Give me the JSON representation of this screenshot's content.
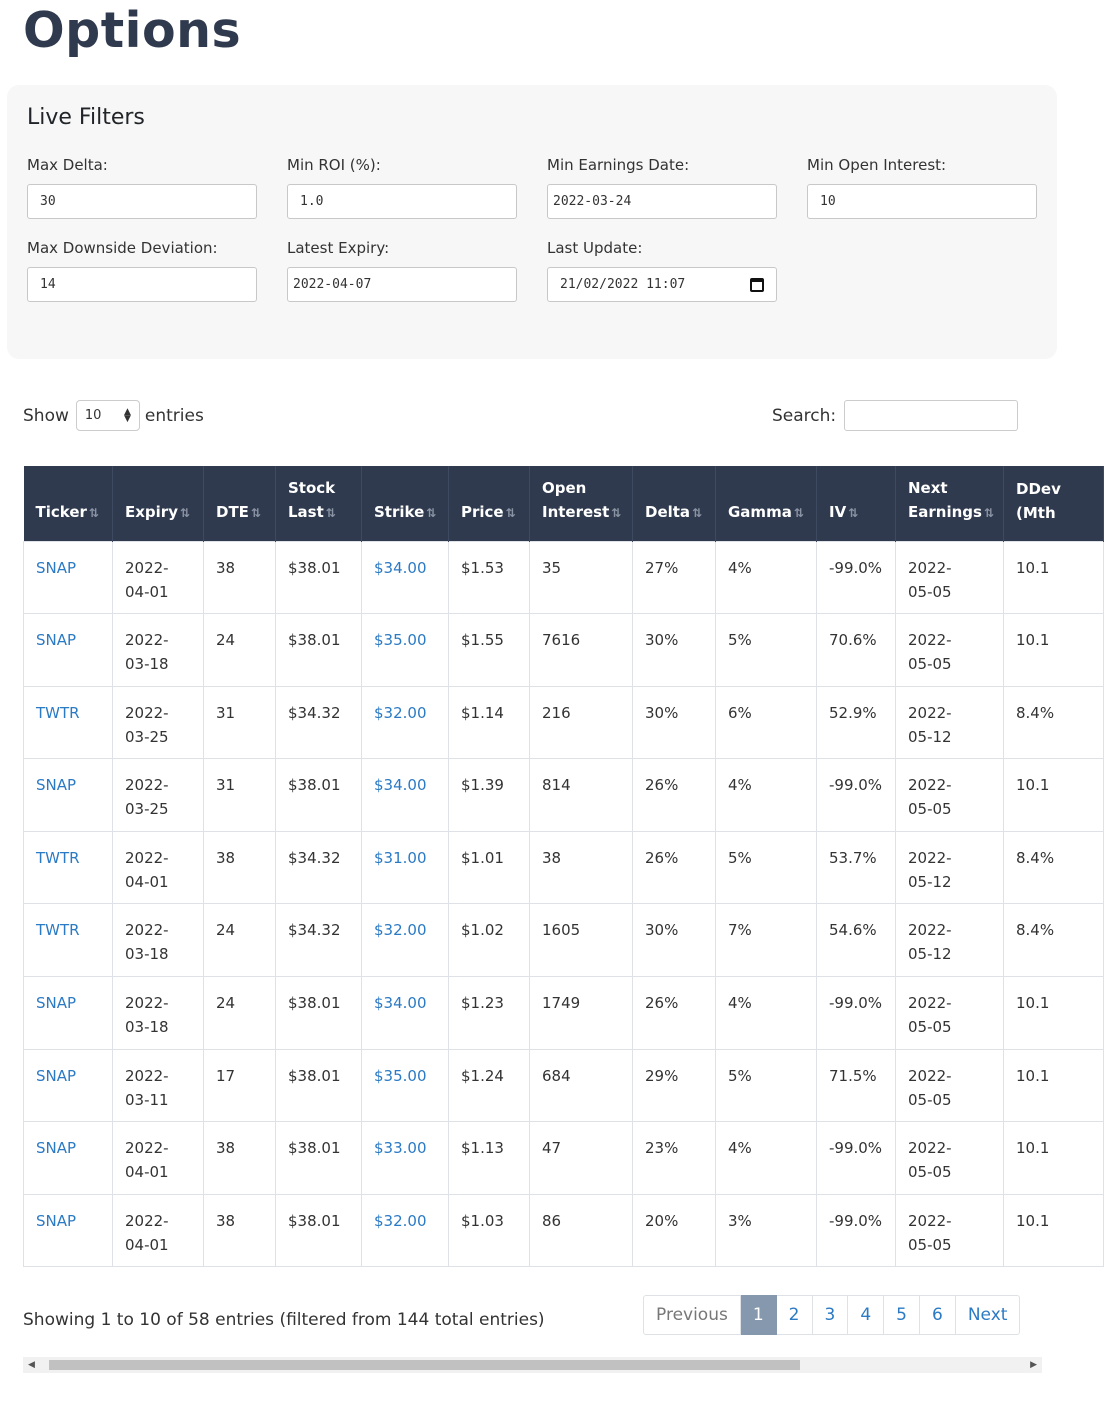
{
  "page": {
    "title": "Options"
  },
  "filters": {
    "heading": "Live Filters",
    "max_delta": {
      "label": "Max Delta:",
      "value": "30"
    },
    "min_roi": {
      "label": "Min ROI (%):",
      "value": "1.0"
    },
    "min_earnings_date": {
      "label": "Min Earnings Date:",
      "value": "2022-03-24"
    },
    "min_open_interest": {
      "label": "Min Open Interest:",
      "value": "10"
    },
    "max_downside_dev": {
      "label": "Max Downside Deviation:",
      "value": "14"
    },
    "latest_expiry": {
      "label": "Latest Expiry:",
      "value": "2022-04-07"
    },
    "last_update": {
      "label": "Last Update:",
      "value": "21/02/2022 11:07"
    }
  },
  "length": {
    "show": "Show",
    "value": "10",
    "entries": "entries"
  },
  "search": {
    "label": "Search:",
    "value": ""
  },
  "table": {
    "columns": [
      {
        "l1": "",
        "l2": "Ticker"
      },
      {
        "l1": "",
        "l2": "Expiry"
      },
      {
        "l1": "",
        "l2": "DTE"
      },
      {
        "l1": "Stock",
        "l2": "Last"
      },
      {
        "l1": "",
        "l2": "Strike"
      },
      {
        "l1": "",
        "l2": "Price"
      },
      {
        "l1": "Open",
        "l2": "Interest"
      },
      {
        "l1": "",
        "l2": "Delta"
      },
      {
        "l1": "",
        "l2": "Gamma"
      },
      {
        "l1": "",
        "l2": "IV"
      },
      {
        "l1": "Next",
        "l2": "Earnings"
      },
      {
        "l1": "DDev",
        "l2": "(Mth"
      }
    ],
    "rows": [
      [
        "SNAP",
        "2022-04-01",
        "38",
        "$38.01",
        "$34.00",
        "$1.53",
        "35",
        "27%",
        "4%",
        "-99.0%",
        "2022-05-05",
        "10.1"
      ],
      [
        "SNAP",
        "2022-03-18",
        "24",
        "$38.01",
        "$35.00",
        "$1.55",
        "7616",
        "30%",
        "5%",
        "70.6%",
        "2022-05-05",
        "10.1"
      ],
      [
        "TWTR",
        "2022-03-25",
        "31",
        "$34.32",
        "$32.00",
        "$1.14",
        "216",
        "30%",
        "6%",
        "52.9%",
        "2022-05-12",
        "8.4%"
      ],
      [
        "SNAP",
        "2022-03-25",
        "31",
        "$38.01",
        "$34.00",
        "$1.39",
        "814",
        "26%",
        "4%",
        "-99.0%",
        "2022-05-05",
        "10.1"
      ],
      [
        "TWTR",
        "2022-04-01",
        "38",
        "$34.32",
        "$31.00",
        "$1.01",
        "38",
        "26%",
        "5%",
        "53.7%",
        "2022-05-12",
        "8.4%"
      ],
      [
        "TWTR",
        "2022-03-18",
        "24",
        "$34.32",
        "$32.00",
        "$1.02",
        "1605",
        "30%",
        "7%",
        "54.6%",
        "2022-05-12",
        "8.4%"
      ],
      [
        "SNAP",
        "2022-03-18",
        "24",
        "$38.01",
        "$34.00",
        "$1.23",
        "1749",
        "26%",
        "4%",
        "-99.0%",
        "2022-05-05",
        "10.1"
      ],
      [
        "SNAP",
        "2022-03-11",
        "17",
        "$38.01",
        "$35.00",
        "$1.24",
        "684",
        "29%",
        "5%",
        "71.5%",
        "2022-05-05",
        "10.1"
      ],
      [
        "SNAP",
        "2022-04-01",
        "38",
        "$38.01",
        "$33.00",
        "$1.13",
        "47",
        "23%",
        "4%",
        "-99.0%",
        "2022-05-05",
        "10.1"
      ],
      [
        "SNAP",
        "2022-04-01",
        "38",
        "$38.01",
        "$32.00",
        "$1.03",
        "86",
        "20%",
        "3%",
        "-99.0%",
        "2022-05-05",
        "10.1"
      ]
    ]
  },
  "info": "Showing 1 to 10 of 58 entries (filtered from 144 total entries)",
  "pagination": {
    "previous": "Previous",
    "pages": [
      "1",
      "2",
      "3",
      "4",
      "5",
      "6"
    ],
    "next": "Next",
    "active": "1"
  }
}
